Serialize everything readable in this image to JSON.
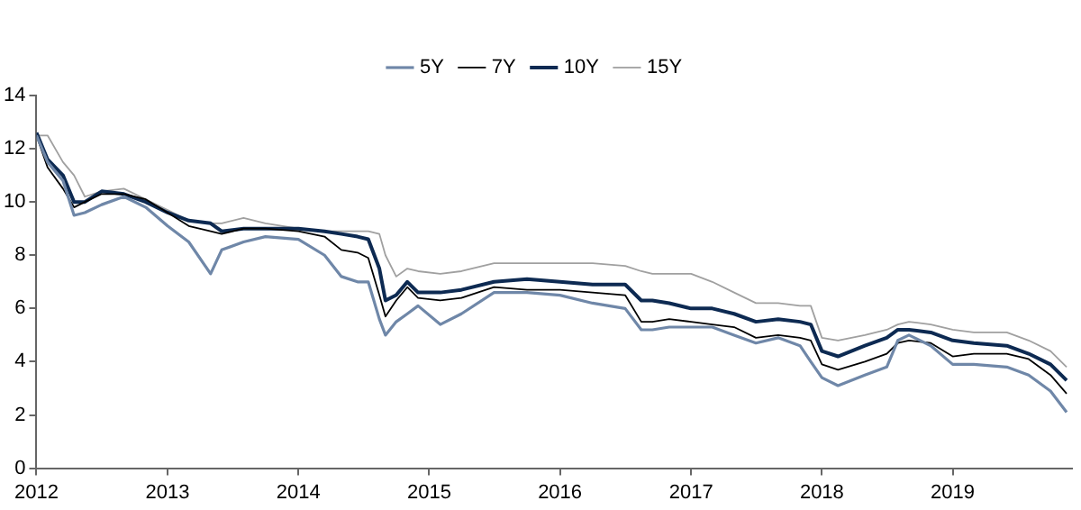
{
  "chart_data": {
    "type": "line",
    "x": [
      "2012-01-01",
      "2012-02-01",
      "2012-03-15",
      "2012-04-15",
      "2012-05-15",
      "2012-07-01",
      "2012-09-01",
      "2012-11-01",
      "2013-01-01",
      "2013-03-01",
      "2013-05-01",
      "2013-06-01",
      "2013-08-01",
      "2013-10-01",
      "2014-01-01",
      "2014-03-15",
      "2014-05-01",
      "2014-06-15",
      "2014-07-15",
      "2014-08-15",
      "2014-09-01",
      "2014-10-01",
      "2014-11-01",
      "2014-12-01",
      "2015-02-01",
      "2015-04-01",
      "2015-07-01",
      "2015-10-01",
      "2016-01-01",
      "2016-04-01",
      "2016-07-01",
      "2016-08-15",
      "2016-09-15",
      "2016-11-01",
      "2017-01-01",
      "2017-03-01",
      "2017-05-01",
      "2017-07-01",
      "2017-09-01",
      "2017-11-01",
      "2017-12-01",
      "2018-01-01",
      "2018-02-15",
      "2018-05-01",
      "2018-07-01",
      "2018-08-01",
      "2018-09-01",
      "2018-11-01",
      "2019-01-01",
      "2019-03-01",
      "2019-06-01",
      "2019-08-01",
      "2019-10-01",
      "2019-11-15"
    ],
    "series": [
      {
        "name": "5Y",
        "color": "#6f87a8",
        "values": [
          12.5,
          11.5,
          10.8,
          9.5,
          9.6,
          9.9,
          10.2,
          9.8,
          9.1,
          8.5,
          7.3,
          8.2,
          8.5,
          8.7,
          8.6,
          8.0,
          7.2,
          7.0,
          7.0,
          5.6,
          5.0,
          5.5,
          5.8,
          6.1,
          5.4,
          5.8,
          6.6,
          6.6,
          6.5,
          6.2,
          6.0,
          5.2,
          5.2,
          5.3,
          5.3,
          5.3,
          5.0,
          4.7,
          4.9,
          4.6,
          4.0,
          3.4,
          3.1,
          3.5,
          3.8,
          4.8,
          5.0,
          4.6,
          3.9,
          3.9,
          3.8,
          3.5,
          2.9,
          2.1
        ]
      },
      {
        "name": "7Y",
        "color": "#000000",
        "values": [
          12.5,
          11.3,
          10.5,
          9.8,
          10.0,
          10.3,
          10.3,
          10.1,
          9.6,
          9.1,
          8.9,
          8.8,
          9.0,
          9.0,
          8.9,
          8.7,
          8.2,
          8.1,
          7.9,
          6.5,
          5.7,
          6.3,
          6.8,
          6.4,
          6.3,
          6.4,
          6.8,
          6.7,
          6.7,
          6.6,
          6.5,
          5.5,
          5.5,
          5.6,
          5.5,
          5.4,
          5.3,
          4.9,
          5.0,
          4.9,
          4.8,
          3.9,
          3.7,
          4.0,
          4.3,
          4.7,
          4.8,
          4.7,
          4.2,
          4.3,
          4.3,
          4.1,
          3.5,
          2.8
        ]
      },
      {
        "name": "10Y",
        "color": "#0d2a52",
        "values": [
          12.6,
          11.6,
          11.0,
          10.0,
          10.0,
          10.4,
          10.3,
          10.0,
          9.6,
          9.3,
          9.2,
          8.9,
          9.0,
          9.0,
          9.0,
          8.9,
          8.8,
          8.7,
          8.6,
          7.5,
          6.3,
          6.5,
          7.0,
          6.6,
          6.6,
          6.7,
          7.0,
          7.1,
          7.0,
          6.9,
          6.9,
          6.3,
          6.3,
          6.2,
          6.0,
          6.0,
          5.8,
          5.5,
          5.6,
          5.5,
          5.4,
          4.4,
          4.2,
          4.6,
          4.9,
          5.2,
          5.2,
          5.1,
          4.8,
          4.7,
          4.6,
          4.3,
          3.9,
          3.3
        ]
      },
      {
        "name": "15Y",
        "color": "#a0a0a0",
        "values": [
          12.5,
          12.5,
          11.5,
          11.0,
          10.2,
          10.4,
          10.5,
          10.1,
          9.7,
          9.3,
          9.2,
          9.2,
          9.4,
          9.2,
          9.0,
          8.9,
          8.9,
          8.9,
          8.9,
          8.8,
          8.0,
          7.2,
          7.5,
          7.4,
          7.3,
          7.4,
          7.7,
          7.7,
          7.7,
          7.7,
          7.6,
          7.4,
          7.3,
          7.3,
          7.3,
          7.0,
          6.6,
          6.2,
          6.2,
          6.1,
          6.1,
          4.9,
          4.8,
          5.0,
          5.2,
          5.4,
          5.5,
          5.4,
          5.2,
          5.1,
          5.1,
          4.8,
          4.4,
          3.8
        ]
      }
    ],
    "xlim": [
      "2012-01-01",
      "2019-11-30"
    ],
    "xticks": [
      "2012",
      "2013",
      "2014",
      "2015",
      "2016",
      "2017",
      "2018",
      "2019"
    ],
    "ylim": [
      0,
      14
    ],
    "yticks": [
      0,
      2,
      4,
      6,
      8,
      10,
      12,
      14
    ],
    "grid": false,
    "legend": "top",
    "marker": "none",
    "line_style": "solid"
  }
}
